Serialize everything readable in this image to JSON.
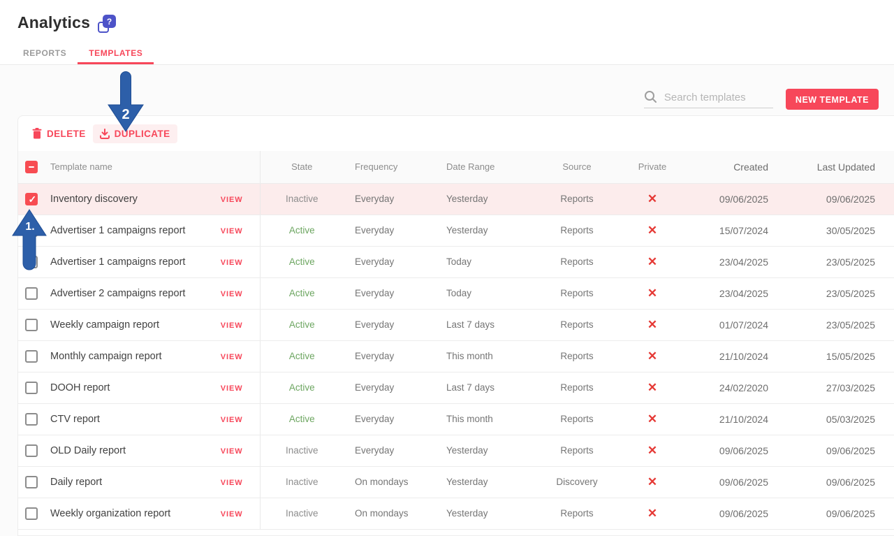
{
  "page": {
    "title": "Analytics"
  },
  "tabs": [
    {
      "label": "REPORTS",
      "active": false
    },
    {
      "label": "TEMPLATES",
      "active": true
    }
  ],
  "toolbar": {
    "search_placeholder": "Search templates",
    "search_value": "",
    "new_template_label": "NEW TEMPLATE"
  },
  "actions": {
    "delete_label": "DELETE",
    "duplicate_label": "DUPLICATE"
  },
  "annotations": {
    "step1_label": "1.",
    "step2_label": "2"
  },
  "colors": {
    "accent_red": "#f7475a",
    "checkbox_red": "#f74c52",
    "selected_row_pink": "#fcecec",
    "active_green": "#6da661",
    "x_mark_red": "#e53935",
    "annotation_blue": "#2d5fa9",
    "help_icon_indigo": "#4d53c8"
  },
  "table": {
    "columns": [
      "Template name",
      "State",
      "Frequency",
      "Date Range",
      "Source",
      "Private",
      "Created",
      "Last Updated"
    ],
    "view_label": "VIEW",
    "private_glyph": "✕",
    "select_all_state": "indeterminate",
    "rows": [
      {
        "name": "Inventory discovery",
        "state": "Inactive",
        "frequency": "Everyday",
        "date_range": "Yesterday",
        "source": "Reports",
        "private": false,
        "created": "09/06/2025",
        "last_updated": "09/06/2025",
        "checked": true,
        "selected": true
      },
      {
        "name": "Advertiser 1 campaigns report",
        "state": "Active",
        "frequency": "Everyday",
        "date_range": "Yesterday",
        "source": "Reports",
        "private": false,
        "created": "15/07/2024",
        "last_updated": "30/05/2025",
        "checked": false,
        "selected": false
      },
      {
        "name": "Advertiser 1 campaigns report",
        "state": "Active",
        "frequency": "Everyday",
        "date_range": "Today",
        "source": "Reports",
        "private": false,
        "created": "23/04/2025",
        "last_updated": "23/05/2025",
        "checked": false,
        "selected": false
      },
      {
        "name": "Advertiser 2 campaigns report",
        "state": "Active",
        "frequency": "Everyday",
        "date_range": "Today",
        "source": "Reports",
        "private": false,
        "created": "23/04/2025",
        "last_updated": "23/05/2025",
        "checked": false,
        "selected": false
      },
      {
        "name": "Weekly campaign report",
        "state": "Active",
        "frequency": "Everyday",
        "date_range": "Last 7 days",
        "source": "Reports",
        "private": false,
        "created": "01/07/2024",
        "last_updated": "23/05/2025",
        "checked": false,
        "selected": false
      },
      {
        "name": "Monthly campaign report",
        "state": "Active",
        "frequency": "Everyday",
        "date_range": "This month",
        "source": "Reports",
        "private": false,
        "created": "21/10/2024",
        "last_updated": "15/05/2025",
        "checked": false,
        "selected": false
      },
      {
        "name": "DOOH report",
        "state": "Active",
        "frequency": "Everyday",
        "date_range": "Last 7 days",
        "source": "Reports",
        "private": false,
        "created": "24/02/2020",
        "last_updated": "27/03/2025",
        "checked": false,
        "selected": false
      },
      {
        "name": "CTV report",
        "state": "Active",
        "frequency": "Everyday",
        "date_range": "This month",
        "source": "Reports",
        "private": false,
        "created": "21/10/2024",
        "last_updated": "05/03/2025",
        "checked": false,
        "selected": false
      },
      {
        "name": "OLD Daily report",
        "state": "Inactive",
        "frequency": "Everyday",
        "date_range": "Yesterday",
        "source": "Reports",
        "private": false,
        "created": "09/06/2025",
        "last_updated": "09/06/2025",
        "checked": false,
        "selected": false
      },
      {
        "name": "Daily report",
        "state": "Inactive",
        "frequency": "On mondays",
        "date_range": "Yesterday",
        "source": "Discovery",
        "private": false,
        "created": "09/06/2025",
        "last_updated": "09/06/2025",
        "checked": false,
        "selected": false
      },
      {
        "name": "Weekly organization report",
        "state": "Inactive",
        "frequency": "On mondays",
        "date_range": "Yesterday",
        "source": "Reports",
        "private": false,
        "created": "09/06/2025",
        "last_updated": "09/06/2025",
        "checked": false,
        "selected": false
      }
    ]
  }
}
